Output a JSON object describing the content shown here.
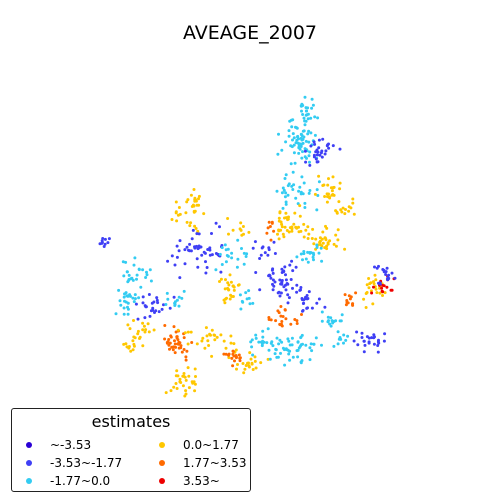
{
  "title": "AVEAGE_2007",
  "legend": {
    "title": "estimates",
    "entries": [
      {
        "label": "~-3.53",
        "color": "#2a00d5"
      },
      {
        "label": "-3.53~-1.77",
        "color": "#3f3ff5"
      },
      {
        "label": "-1.77~0.0",
        "color": "#33ccf2"
      },
      {
        "label": "0.0~1.77",
        "color": "#ffc700"
      },
      {
        "label": "1.77~3.53",
        "color": "#ff6a00"
      },
      {
        "label": "3.53~",
        "color": "#ee0000"
      }
    ]
  }
}
